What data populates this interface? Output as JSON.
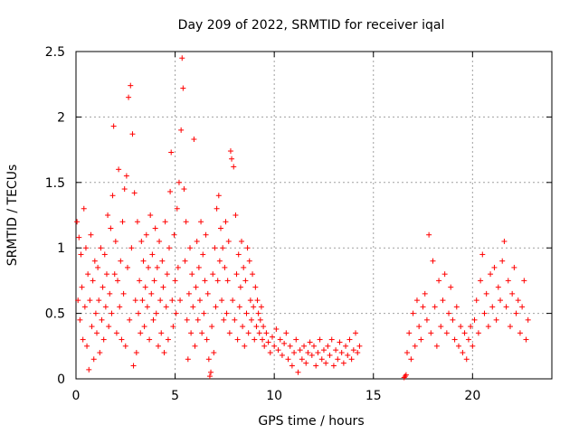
{
  "chart_data": {
    "type": "scatter",
    "title": "Day 209 of 2022, SRMTID for receiver iqal",
    "xlabel": "GPS time / hours",
    "ylabel": "SRMTID / TECUs",
    "xlim": [
      0,
      24.0
    ],
    "ylim": [
      0,
      2.5
    ],
    "xticks": [
      0,
      5,
      10,
      15,
      20
    ],
    "xtick_labels": [
      "0",
      "5",
      "10",
      "15",
      "20"
    ],
    "yticks": [
      0,
      0.5,
      1,
      1.5,
      2,
      2.5
    ],
    "ytick_labels": [
      "0",
      "0.5",
      "1",
      "1.5",
      "2",
      "2.5"
    ],
    "grid": true,
    "marker": "+",
    "series": [
      {
        "name": "SRMTID",
        "color": "#ff0000",
        "points": [
          [
            0.05,
            1.2
          ],
          [
            0.1,
            0.6
          ],
          [
            0.15,
            1.08
          ],
          [
            0.2,
            0.45
          ],
          [
            0.25,
            0.95
          ],
          [
            0.3,
            0.7
          ],
          [
            0.35,
            0.3
          ],
          [
            0.4,
            1.3
          ],
          [
            0.45,
            0.55
          ],
          [
            0.5,
            1.0
          ],
          [
            0.55,
            0.25
          ],
          [
            0.6,
            0.8
          ],
          [
            0.65,
            0.07
          ],
          [
            0.7,
            0.6
          ],
          [
            0.75,
            1.1
          ],
          [
            0.8,
            0.4
          ],
          [
            0.85,
            0.75
          ],
          [
            0.9,
            0.15
          ],
          [
            0.95,
            0.9
          ],
          [
            1.0,
            0.5
          ],
          [
            1.05,
            0.35
          ],
          [
            1.1,
            0.85
          ],
          [
            1.15,
            0.6
          ],
          [
            1.2,
            0.2
          ],
          [
            1.25,
            1.0
          ],
          [
            1.3,
            0.45
          ],
          [
            1.35,
            0.7
          ],
          [
            1.4,
            0.3
          ],
          [
            1.45,
            0.95
          ],
          [
            1.5,
            0.55
          ],
          [
            1.55,
            0.8
          ],
          [
            1.6,
            1.25
          ],
          [
            1.65,
            0.4
          ],
          [
            1.7,
            0.65
          ],
          [
            1.75,
            1.15
          ],
          [
            1.8,
            0.5
          ],
          [
            1.85,
            1.4
          ],
          [
            1.9,
            1.93
          ],
          [
            1.95,
            0.8
          ],
          [
            2.0,
            1.05
          ],
          [
            2.05,
            0.35
          ],
          [
            2.1,
            0.75
          ],
          [
            2.15,
            1.6
          ],
          [
            2.2,
            0.55
          ],
          [
            2.25,
            0.9
          ],
          [
            2.3,
            0.3
          ],
          [
            2.35,
            1.2
          ],
          [
            2.4,
            0.65
          ],
          [
            2.45,
            1.45
          ],
          [
            2.5,
            0.25
          ],
          [
            2.55,
            1.55
          ],
          [
            2.6,
            0.85
          ],
          [
            2.65,
            2.15
          ],
          [
            2.7,
            0.45
          ],
          [
            2.75,
            2.24
          ],
          [
            2.8,
            1.0
          ],
          [
            2.85,
            1.87
          ],
          [
            2.9,
            0.1
          ],
          [
            2.95,
            1.42
          ],
          [
            3.0,
            0.6
          ],
          [
            3.05,
            0.2
          ],
          [
            3.1,
            1.2
          ],
          [
            3.15,
            0.5
          ],
          [
            3.2,
            0.75
          ],
          [
            3.25,
            0.35
          ],
          [
            3.3,
            1.05
          ],
          [
            3.35,
            0.6
          ],
          [
            3.4,
            0.9
          ],
          [
            3.45,
            0.4
          ],
          [
            3.5,
            0.7
          ],
          [
            3.55,
            1.1
          ],
          [
            3.6,
            0.55
          ],
          [
            3.65,
            0.85
          ],
          [
            3.7,
            0.3
          ],
          [
            3.75,
            1.25
          ],
          [
            3.8,
            0.65
          ],
          [
            3.85,
            0.95
          ],
          [
            3.9,
            0.45
          ],
          [
            3.95,
            0.75
          ],
          [
            4.0,
            1.15
          ],
          [
            4.05,
            0.5
          ],
          [
            4.1,
            0.85
          ],
          [
            4.15,
            0.25
          ],
          [
            4.2,
            1.05
          ],
          [
            4.25,
            0.6
          ],
          [
            4.3,
            0.35
          ],
          [
            4.35,
            0.9
          ],
          [
            4.4,
            0.7
          ],
          [
            4.45,
            0.2
          ],
          [
            4.5,
            1.2
          ],
          [
            4.55,
            0.55
          ],
          [
            4.6,
            0.8
          ],
          [
            4.65,
            0.3
          ],
          [
            4.7,
            1.0
          ],
          [
            4.75,
            1.43
          ],
          [
            4.8,
            1.73
          ],
          [
            4.85,
            0.6
          ],
          [
            4.9,
            0.4
          ],
          [
            4.95,
            1.1
          ],
          [
            5.0,
            0.75
          ],
          [
            5.05,
            0.5
          ],
          [
            5.1,
            1.3
          ],
          [
            5.15,
            0.85
          ],
          [
            5.2,
            1.5
          ],
          [
            5.25,
            0.6
          ],
          [
            5.3,
            1.9
          ],
          [
            5.35,
            2.45
          ],
          [
            5.4,
            2.22
          ],
          [
            5.45,
            1.45
          ],
          [
            5.5,
            0.9
          ],
          [
            5.55,
            1.2
          ],
          [
            5.6,
            0.45
          ],
          [
            5.65,
            0.15
          ],
          [
            5.7,
            0.65
          ],
          [
            5.75,
            1.0
          ],
          [
            5.8,
            0.35
          ],
          [
            5.85,
            0.8
          ],
          [
            5.9,
            0.55
          ],
          [
            5.95,
            1.83
          ],
          [
            6.0,
            0.25
          ],
          [
            6.05,
            0.7
          ],
          [
            6.1,
            1.05
          ],
          [
            6.15,
            0.45
          ],
          [
            6.2,
            0.85
          ],
          [
            6.25,
            0.6
          ],
          [
            6.3,
            1.2
          ],
          [
            6.35,
            0.35
          ],
          [
            6.4,
            0.95
          ],
          [
            6.45,
            0.5
          ],
          [
            6.5,
            0.75
          ],
          [
            6.55,
            1.1
          ],
          [
            6.6,
            0.3
          ],
          [
            6.65,
            0.65
          ],
          [
            6.7,
            0.15
          ],
          [
            6.75,
            0.02
          ],
          [
            6.8,
            0.05
          ],
          [
            6.85,
            0.4
          ],
          [
            6.9,
            0.8
          ],
          [
            6.95,
            0.2
          ],
          [
            7.0,
            1.0
          ],
          [
            7.05,
            0.55
          ],
          [
            7.1,
            1.3
          ],
          [
            7.15,
            0.75
          ],
          [
            7.2,
            1.4
          ],
          [
            7.25,
            0.9
          ],
          [
            7.3,
            1.15
          ],
          [
            7.35,
            0.6
          ],
          [
            7.4,
            1.0
          ],
          [
            7.45,
            0.45
          ],
          [
            7.5,
            0.85
          ],
          [
            7.55,
            1.2
          ],
          [
            7.6,
            0.5
          ],
          [
            7.65,
            0.75
          ],
          [
            7.7,
            1.05
          ],
          [
            7.75,
            0.35
          ],
          [
            7.8,
            1.74
          ],
          [
            7.85,
            1.68
          ],
          [
            7.9,
            0.6
          ],
          [
            7.95,
            1.62
          ],
          [
            8.0,
            0.45
          ],
          [
            8.05,
            1.25
          ],
          [
            8.1,
            0.8
          ],
          [
            8.15,
            0.3
          ],
          [
            8.2,
            0.95
          ],
          [
            8.25,
            0.55
          ],
          [
            8.3,
            0.7
          ],
          [
            8.35,
            1.05
          ],
          [
            8.4,
            0.4
          ],
          [
            8.45,
            0.85
          ],
          [
            8.5,
            0.25
          ],
          [
            8.55,
            0.75
          ],
          [
            8.6,
            0.5
          ],
          [
            8.65,
            1.0
          ],
          [
            8.7,
            0.35
          ],
          [
            8.75,
            0.9
          ],
          [
            8.8,
            0.6
          ],
          [
            8.85,
            0.45
          ],
          [
            8.9,
            0.8
          ],
          [
            8.95,
            0.55
          ],
          [
            9.0,
            0.3
          ],
          [
            9.05,
            0.7
          ],
          [
            9.1,
            0.4
          ],
          [
            9.15,
            0.6
          ],
          [
            9.2,
            0.5
          ],
          [
            9.25,
            0.35
          ],
          [
            9.3,
            0.45
          ],
          [
            9.35,
            0.55
          ],
          [
            9.4,
            0.3
          ],
          [
            9.45,
            0.4
          ],
          [
            9.5,
            0.25
          ],
          [
            9.6,
            0.35
          ],
          [
            9.7,
            0.28
          ],
          [
            9.8,
            0.2
          ],
          [
            9.9,
            0.32
          ],
          [
            10.0,
            0.25
          ],
          [
            10.1,
            0.38
          ],
          [
            10.2,
            0.22
          ],
          [
            10.3,
            0.3
          ],
          [
            10.4,
            0.18
          ],
          [
            10.5,
            0.27
          ],
          [
            10.6,
            0.35
          ],
          [
            10.7,
            0.15
          ],
          [
            10.8,
            0.25
          ],
          [
            10.9,
            0.1
          ],
          [
            11.0,
            0.2
          ],
          [
            11.1,
            0.3
          ],
          [
            11.2,
            0.05
          ],
          [
            11.3,
            0.22
          ],
          [
            11.4,
            0.15
          ],
          [
            11.5,
            0.25
          ],
          [
            11.6,
            0.12
          ],
          [
            11.7,
            0.2
          ],
          [
            11.8,
            0.28
          ],
          [
            11.9,
            0.18
          ],
          [
            12.0,
            0.25
          ],
          [
            12.1,
            0.1
          ],
          [
            12.2,
            0.2
          ],
          [
            12.3,
            0.3
          ],
          [
            12.4,
            0.15
          ],
          [
            12.5,
            0.22
          ],
          [
            12.6,
            0.12
          ],
          [
            12.7,
            0.25
          ],
          [
            12.8,
            0.18
          ],
          [
            12.9,
            0.3
          ],
          [
            13.0,
            0.1
          ],
          [
            13.1,
            0.22
          ],
          [
            13.2,
            0.15
          ],
          [
            13.3,
            0.28
          ],
          [
            13.4,
            0.2
          ],
          [
            13.5,
            0.12
          ],
          [
            13.6,
            0.25
          ],
          [
            13.7,
            0.18
          ],
          [
            13.8,
            0.3
          ],
          [
            13.9,
            0.15
          ],
          [
            14.0,
            0.22
          ],
          [
            14.1,
            0.35
          ],
          [
            14.2,
            0.2
          ],
          [
            14.3,
            0.25
          ],
          [
            16.55,
            0.01
          ],
          [
            16.6,
            0.02
          ],
          [
            16.65,
            0.03
          ],
          [
            16.7,
            0.2
          ],
          [
            16.8,
            0.35
          ],
          [
            16.9,
            0.15
          ],
          [
            17.0,
            0.5
          ],
          [
            17.1,
            0.25
          ],
          [
            17.2,
            0.6
          ],
          [
            17.3,
            0.4
          ],
          [
            17.4,
            0.3
          ],
          [
            17.5,
            0.55
          ],
          [
            17.6,
            0.65
          ],
          [
            17.7,
            0.45
          ],
          [
            17.8,
            1.1
          ],
          [
            17.9,
            0.35
          ],
          [
            18.0,
            0.9
          ],
          [
            18.1,
            0.55
          ],
          [
            18.2,
            0.25
          ],
          [
            18.3,
            0.75
          ],
          [
            18.4,
            0.4
          ],
          [
            18.5,
            0.6
          ],
          [
            18.6,
            0.8
          ],
          [
            18.7,
            0.35
          ],
          [
            18.8,
            0.5
          ],
          [
            18.9,
            0.7
          ],
          [
            19.0,
            0.45
          ],
          [
            19.1,
            0.3
          ],
          [
            19.2,
            0.55
          ],
          [
            19.3,
            0.25
          ],
          [
            19.4,
            0.4
          ],
          [
            19.5,
            0.2
          ],
          [
            19.6,
            0.35
          ],
          [
            19.7,
            0.15
          ],
          [
            19.8,
            0.3
          ],
          [
            19.9,
            0.4
          ],
          [
            20.0,
            0.25
          ],
          [
            20.1,
            0.45
          ],
          [
            20.2,
            0.6
          ],
          [
            20.3,
            0.35
          ],
          [
            20.4,
            0.75
          ],
          [
            20.5,
            0.95
          ],
          [
            20.6,
            0.5
          ],
          [
            20.7,
            0.65
          ],
          [
            20.8,
            0.4
          ],
          [
            20.9,
            0.8
          ],
          [
            21.0,
            0.55
          ],
          [
            21.1,
            0.85
          ],
          [
            21.2,
            0.45
          ],
          [
            21.3,
            0.7
          ],
          [
            21.4,
            0.6
          ],
          [
            21.5,
            0.9
          ],
          [
            21.6,
            1.05
          ],
          [
            21.7,
            0.55
          ],
          [
            21.8,
            0.75
          ],
          [
            21.9,
            0.4
          ],
          [
            22.0,
            0.65
          ],
          [
            22.1,
            0.85
          ],
          [
            22.2,
            0.5
          ],
          [
            22.3,
            0.6
          ],
          [
            22.4,
            0.35
          ],
          [
            22.5,
            0.55
          ],
          [
            22.6,
            0.75
          ],
          [
            22.7,
            0.3
          ],
          [
            22.8,
            0.45
          ]
        ]
      }
    ]
  }
}
